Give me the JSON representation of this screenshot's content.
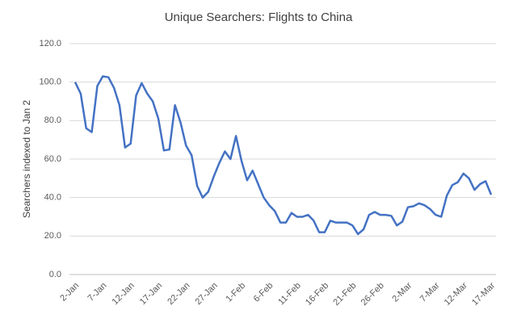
{
  "chart_data": {
    "type": "line",
    "title": "Unique Searchers: Flights to China",
    "y_label": "Searchers indexed to Jan 2",
    "categories": [
      "2-Jan",
      null,
      null,
      null,
      null,
      "7-Jan",
      null,
      null,
      null,
      null,
      "12-Jan",
      null,
      null,
      null,
      null,
      "17-Jan",
      null,
      null,
      null,
      null,
      "22-Jan",
      null,
      null,
      null,
      null,
      "27-Jan",
      null,
      null,
      null,
      null,
      "1-Feb",
      null,
      null,
      null,
      null,
      "6-Feb",
      null,
      null,
      null,
      null,
      "11-Feb",
      null,
      null,
      null,
      null,
      "16-Feb",
      null,
      null,
      null,
      null,
      "21-Feb",
      null,
      null,
      null,
      null,
      "26-Feb",
      null,
      null,
      null,
      null,
      "2-Mar",
      null,
      null,
      null,
      null,
      "7-Mar",
      null,
      null,
      null,
      null,
      "12-Mar",
      null,
      null,
      null,
      null,
      "17-Mar"
    ],
    "series": [
      {
        "name": "Unique Searchers",
        "color": "#4472c4",
        "values": [
          100,
          94,
          76,
          74,
          98,
          103,
          102.5,
          97,
          88,
          66,
          68,
          93,
          99.5,
          94,
          90,
          81,
          64.5,
          65,
          88,
          79,
          67,
          62,
          46,
          40,
          43,
          51,
          58,
          64,
          60,
          72,
          59,
          49,
          54,
          47,
          40,
          36,
          33,
          27,
          27,
          32,
          30,
          30,
          31,
          28,
          22,
          22,
          28,
          27,
          27,
          27,
          25.5,
          21,
          23.5,
          31,
          32.5,
          31,
          31,
          30.5,
          25.5,
          27.5,
          35,
          35.5,
          37,
          36,
          34,
          31,
          30,
          41,
          46.5,
          48,
          52.5,
          50,
          44,
          47,
          48.5,
          41.5
        ]
      }
    ],
    "ylim": [
      0,
      120
    ],
    "yticks": [
      {
        "value": 0,
        "label": "0.0"
      },
      {
        "value": 20,
        "label": "20.0"
      },
      {
        "value": 40,
        "label": "40.0"
      },
      {
        "value": 60,
        "label": "60.0"
      },
      {
        "value": 80,
        "label": "80.0"
      },
      {
        "value": 100,
        "label": "100.0"
      },
      {
        "value": 120,
        "label": "120.0"
      }
    ],
    "grid": true
  }
}
